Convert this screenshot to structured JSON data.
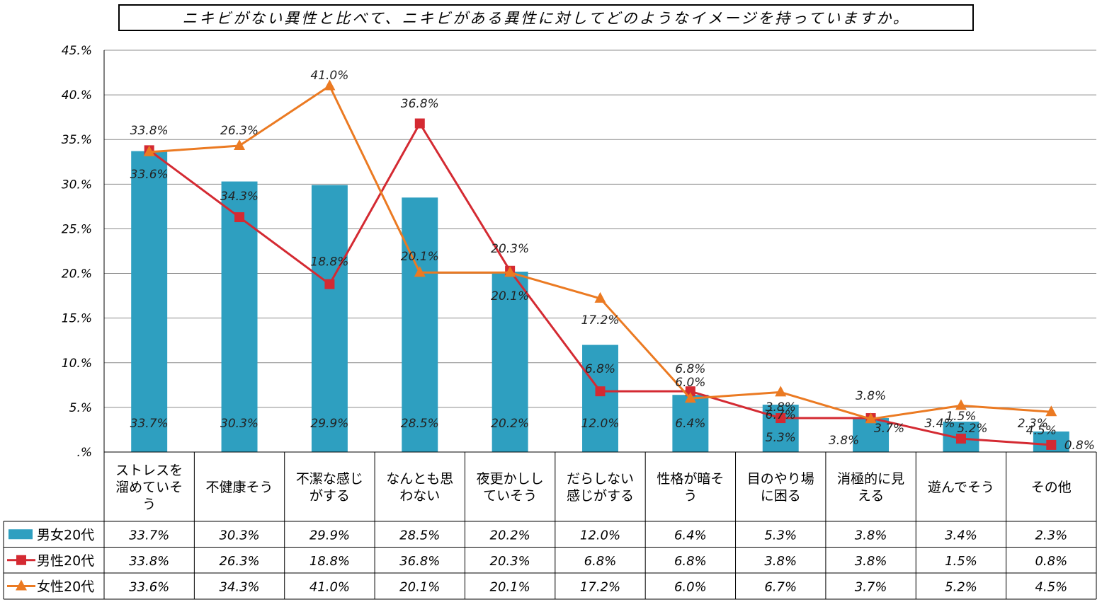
{
  "chart_data": {
    "type": "bar",
    "title": "ニキビがない異性と比べて、ニキビがある異性に対してどのようなイメージを持っていますか。",
    "y_ticks": [
      "45.%",
      "40.%",
      "35.%",
      "30.%",
      "25.%",
      "20.%",
      "15.%",
      "10.%",
      "5.%",
      ".%"
    ],
    "ylim": [
      0,
      45
    ],
    "grid": true,
    "legend_placement": "table-left",
    "categories": [
      [
        "ストレスを",
        "溜めていそ",
        "う"
      ],
      [
        "不健康そう"
      ],
      [
        "不潔な感じ",
        "がする"
      ],
      [
        "なんとも思",
        "わない"
      ],
      [
        "夜更かしし",
        "ていそう"
      ],
      [
        "だらしない",
        "感じがする"
      ],
      [
        "性格が暗そ",
        "う"
      ],
      [
        "目のやり場",
        "に困る"
      ],
      [
        "消極的に見",
        "える"
      ],
      [
        "遊んでそう"
      ],
      [
        "その他"
      ]
    ],
    "series": [
      {
        "name": "男女20代",
        "kind": "bar",
        "color": "#2E9FC0",
        "values": [
          33.7,
          30.3,
          29.9,
          28.5,
          20.2,
          12.0,
          6.4,
          5.3,
          3.8,
          3.4,
          2.3
        ],
        "labels": [
          "33.7%",
          "30.3%",
          "29.9%",
          "28.5%",
          "20.2%",
          "12.0%",
          "6.4%",
          "5.3%",
          "3.8%",
          "3.4%",
          "2.3%"
        ]
      },
      {
        "name": "男性20代",
        "kind": "line",
        "marker": "square",
        "color": "#D42A32",
        "values": [
          33.8,
          26.3,
          18.8,
          36.8,
          20.3,
          6.8,
          6.8,
          3.8,
          3.8,
          1.5,
          0.8
        ],
        "labels": [
          "33.8%",
          "26.3%",
          "18.8%",
          "36.8%",
          "20.3%",
          "6.8%",
          "6.8%",
          "3.8%",
          "3.8%",
          "1.5%",
          "0.8%"
        ]
      },
      {
        "name": "女性20代",
        "kind": "line",
        "marker": "triangle",
        "color": "#EB7A22",
        "values": [
          33.6,
          34.3,
          41.0,
          20.1,
          20.1,
          17.2,
          6.0,
          6.7,
          3.7,
          5.2,
          4.5
        ],
        "labels": [
          "33.6%",
          "34.3%",
          "41.0%",
          "20.1%",
          "20.1%",
          "17.2%",
          "6.0%",
          "6.7%",
          "3.7%",
          "5.2%",
          "4.5%"
        ]
      }
    ]
  }
}
